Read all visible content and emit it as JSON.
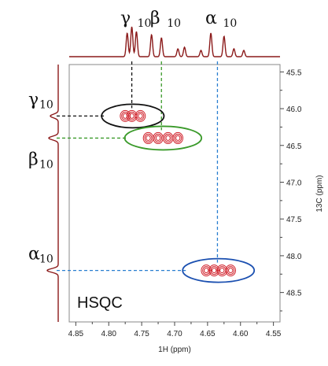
{
  "chart_data": {
    "type": "heatmap",
    "title": "",
    "xlabel": "1H (ppm)",
    "ylabel": "13C (ppm)",
    "xlim": [
      4.86,
      4.54
    ],
    "ylim": [
      45.4,
      48.9
    ],
    "x_ticks": [
      "4.85",
      "4.80",
      "4.75",
      "4.70",
      "4.65",
      "4.60",
      "4.55"
    ],
    "x_tick_values": [
      4.85,
      4.8,
      4.75,
      4.7,
      4.65,
      4.6,
      4.55
    ],
    "y_ticks": [
      "45.5",
      "46.0",
      "46.5",
      "47.0",
      "47.5",
      "48.0",
      "48.5"
    ],
    "y_tick_values": [
      45.5,
      46.0,
      46.5,
      47.0,
      47.5,
      48.0,
      48.5
    ],
    "panel_label": "HSQC",
    "peaks": [
      {
        "label": "γ",
        "subscript": "10",
        "h_ppm": 4.765,
        "c_ppm": 46.1,
        "circle_color": "#111111",
        "guide_color": "#111111",
        "contour_h": [
          4.775,
          4.765,
          4.752
        ]
      },
      {
        "label": "β",
        "subscript": "10",
        "h_ppm": 4.72,
        "c_ppm": 46.4,
        "circle_color": "#3a9a2a",
        "guide_color": "#3a9a2a",
        "contour_h": [
          4.74,
          4.725,
          4.71,
          4.695
        ]
      },
      {
        "label": "α",
        "subscript": "10",
        "h_ppm": 4.635,
        "c_ppm": 48.2,
        "circle_color": "#1a4fb0",
        "guide_color": "#2a7fd0",
        "contour_h": [
          4.652,
          4.64,
          4.628,
          4.615
        ]
      }
    ],
    "contour_color": "#d0202a",
    "projection_color": "#8b1a1a"
  }
}
